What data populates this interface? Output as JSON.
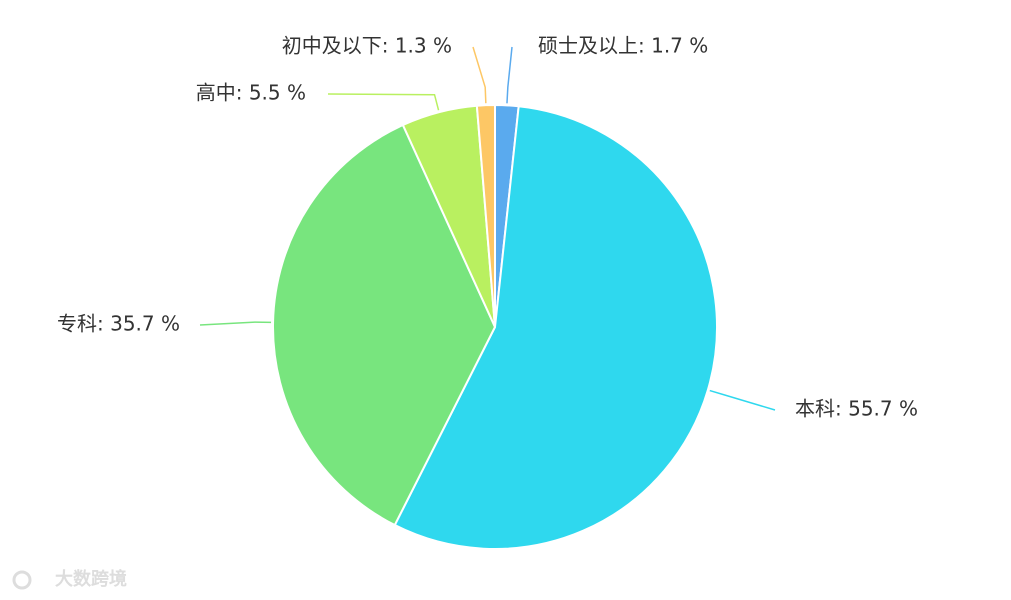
{
  "chart_data": {
    "type": "pie",
    "categories": [
      "硕士及以上: 1.7 %",
      "本科: 55.7 %",
      "专科: 35.7 %",
      "高中: 5.5 %",
      "初中及以下: 1.3 %"
    ],
    "values": [
      1.7,
      55.7,
      35.7,
      5.5,
      1.3
    ],
    "colors": [
      "#5aaaee",
      "#2fd8ee",
      "#78e57e",
      "#b9f060",
      "#fdc765"
    ]
  },
  "watermark": "大数跨境"
}
